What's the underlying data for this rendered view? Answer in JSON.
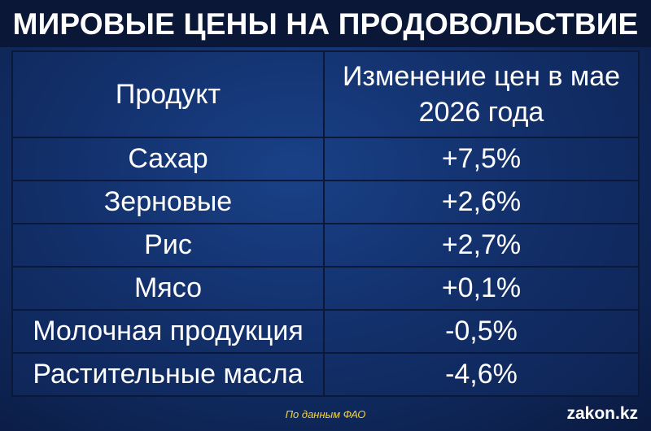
{
  "title": "МИРОВЫЕ ЦЕНЫ НА ПРОДОВОЛЬСТВИЕ",
  "table": {
    "headers": [
      "Продукт",
      "Изменение цен в мае 2026 года"
    ],
    "rows": [
      [
        "Сахар",
        "+7,5%"
      ],
      [
        "Зерновые",
        "+2,6%"
      ],
      [
        "Рис",
        "+2,7%"
      ],
      [
        "Мясо",
        "+0,1%"
      ],
      [
        "Молочная продукция",
        "-0,5%"
      ],
      [
        "Растительные масла",
        "-4,6%"
      ]
    ]
  },
  "source": "По данным ФАО",
  "brand": "zakon.kz"
}
